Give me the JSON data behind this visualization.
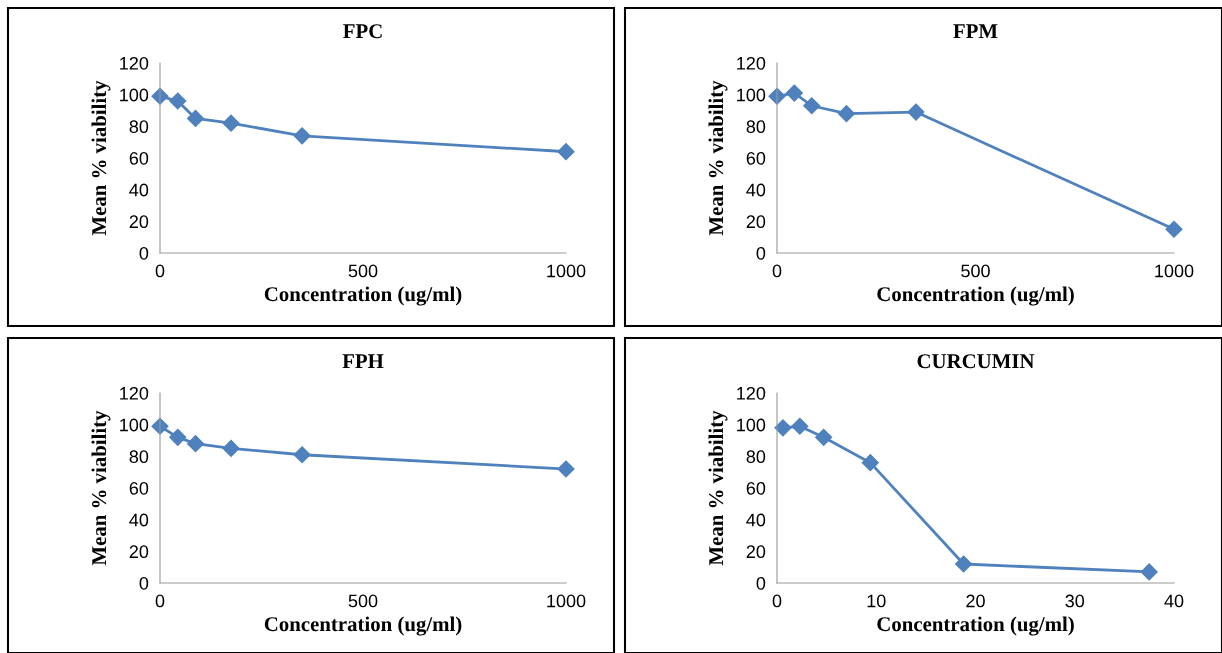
{
  "chart_data": [
    {
      "type": "line",
      "title": "FPC",
      "xlabel": "Concentration (ug/ml)",
      "ylabel": "Mean % viability",
      "marker": "diamond",
      "grid": false,
      "xlim": [
        0,
        1000
      ],
      "xticks": [
        0,
        500,
        1000
      ],
      "ylim": [
        0,
        120
      ],
      "yticks": [
        0,
        20,
        40,
        60,
        80,
        100,
        120
      ],
      "series": [
        {
          "color": "#4f81bd",
          "x": [
            0,
            43.75,
            87.5,
            175,
            350,
            1000
          ],
          "values": [
            99,
            96,
            85,
            82,
            74,
            64
          ]
        }
      ]
    },
    {
      "type": "line",
      "title": "FPM",
      "xlabel": "Concentration (ug/ml)",
      "ylabel": "Mean % viability",
      "marker": "diamond",
      "grid": false,
      "xlim": [
        0,
        1000
      ],
      "xticks": [
        0,
        500,
        1000
      ],
      "ylim": [
        0,
        120
      ],
      "yticks": [
        0,
        20,
        40,
        60,
        80,
        100,
        120
      ],
      "series": [
        {
          "color": "#4f81bd",
          "x": [
            0,
            43.75,
            87.5,
            175,
            350,
            1000
          ],
          "values": [
            99,
            101,
            93,
            88,
            89,
            15
          ]
        }
      ]
    },
    {
      "type": "line",
      "title": "FPH",
      "xlabel": "Concentration (ug/ml)",
      "ylabel": "Mean % viability",
      "marker": "diamond",
      "grid": false,
      "xlim": [
        0,
        1000
      ],
      "xticks": [
        0,
        500,
        1000
      ],
      "ylim": [
        0,
        120
      ],
      "yticks": [
        0,
        20,
        40,
        60,
        80,
        100,
        120
      ],
      "series": [
        {
          "color": "#4f81bd",
          "x": [
            0,
            43.75,
            87.5,
            175,
            350,
            1000
          ],
          "values": [
            99,
            92,
            88,
            85,
            81,
            72
          ]
        }
      ]
    },
    {
      "type": "line",
      "title": "CURCUMIN",
      "xlabel": "Concentration (ug/ml)",
      "ylabel": "Mean % viability",
      "marker": "diamond",
      "grid": false,
      "xlim": [
        0,
        40
      ],
      "xticks": [
        0,
        10,
        20,
        30,
        40
      ],
      "ylim": [
        0,
        120
      ],
      "yticks": [
        0,
        20,
        40,
        60,
        80,
        100,
        120
      ],
      "series": [
        {
          "color": "#4f81bd",
          "x": [
            0.6,
            2.3,
            4.7,
            9.4,
            18.8,
            37.5
          ],
          "values": [
            98,
            99,
            92,
            76,
            12,
            7
          ]
        }
      ]
    }
  ]
}
